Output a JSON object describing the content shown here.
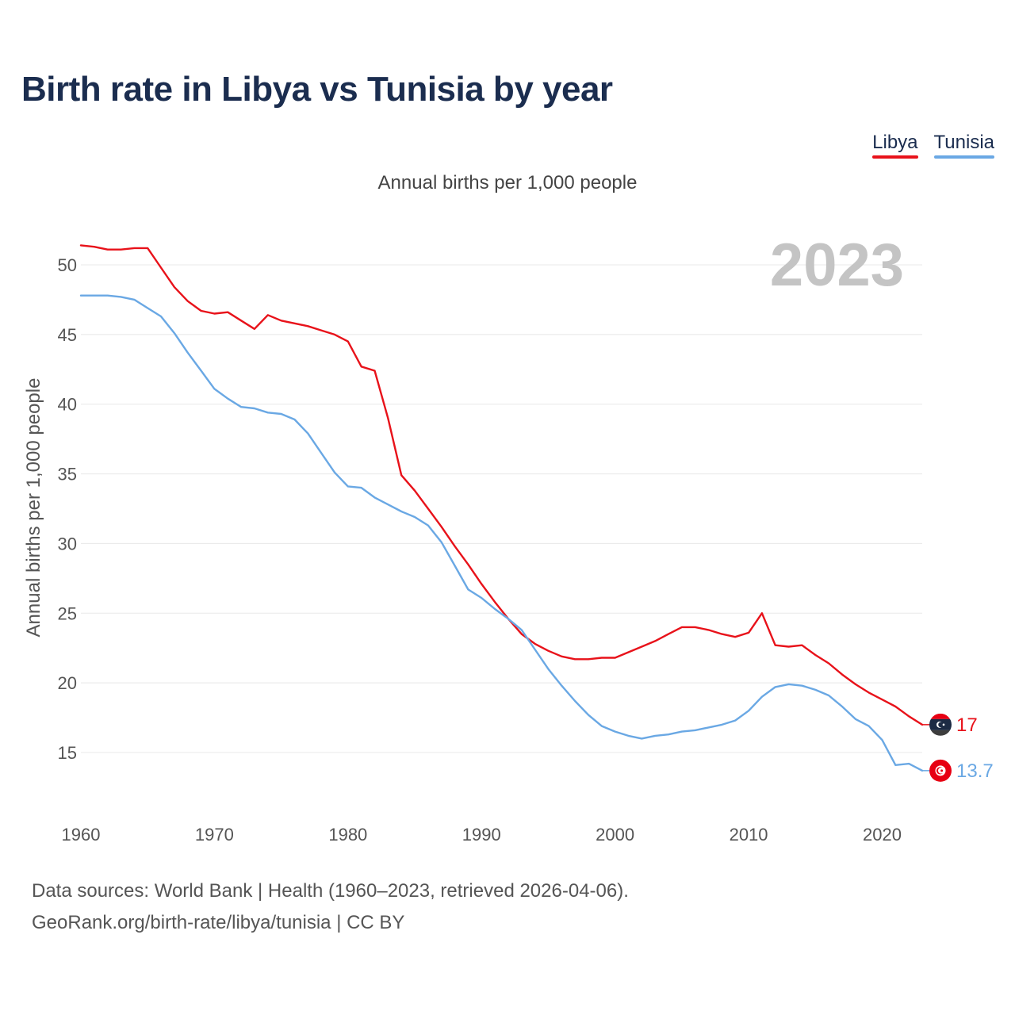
{
  "title": "Birth rate in Libya vs Tunisia by year",
  "subtitle": "Annual births per 1,000 people",
  "year_label": "2023",
  "footer": {
    "line1": "Data sources: World Bank | Health (1960–2023, retrieved 2026-04-06).",
    "line2": "GeoRank.org/birth-rate/libya/tunisia | CC BY"
  },
  "chart_data": {
    "type": "line",
    "title": "Birth rate in Libya vs Tunisia by year",
    "ylabel": "Annual births per 1,000 people",
    "xlabel": "",
    "xlim": [
      1960,
      2023
    ],
    "ylim": [
      15,
      50
    ],
    "y_ticks": [
      15,
      20,
      25,
      30,
      35,
      40,
      45,
      50
    ],
    "x_ticks": [
      1960,
      1970,
      1980,
      1990,
      2000,
      2010,
      2020
    ],
    "legend_position": "top-right",
    "x": [
      1960,
      1961,
      1962,
      1963,
      1964,
      1965,
      1966,
      1967,
      1968,
      1969,
      1970,
      1971,
      1972,
      1973,
      1974,
      1975,
      1976,
      1977,
      1978,
      1979,
      1980,
      1981,
      1982,
      1983,
      1984,
      1985,
      1986,
      1987,
      1988,
      1989,
      1990,
      1991,
      1992,
      1993,
      1994,
      1995,
      1996,
      1997,
      1998,
      1999,
      2000,
      2001,
      2002,
      2003,
      2004,
      2005,
      2006,
      2007,
      2008,
      2009,
      2010,
      2011,
      2012,
      2013,
      2014,
      2015,
      2016,
      2017,
      2018,
      2019,
      2020,
      2021,
      2022,
      2023
    ],
    "series": [
      {
        "name": "Libya",
        "color": "#e8121a",
        "end_label": "17",
        "values": [
          51.4,
          51.3,
          51.1,
          51.1,
          51.2,
          51.2,
          49.8,
          48.4,
          47.4,
          46.7,
          46.5,
          46.6,
          46.0,
          45.4,
          46.4,
          46.0,
          45.8,
          45.6,
          45.3,
          45.0,
          44.5,
          42.7,
          42.4,
          39.0,
          34.9,
          33.8,
          32.5,
          31.2,
          29.8,
          28.5,
          27.1,
          25.8,
          24.6,
          23.5,
          22.8,
          22.3,
          21.9,
          21.7,
          21.7,
          21.8,
          21.8,
          22.2,
          22.6,
          23.0,
          23.5,
          24.0,
          24.0,
          23.8,
          23.5,
          23.3,
          23.6,
          25.0,
          22.7,
          22.6,
          22.7,
          22.0,
          21.4,
          20.6,
          19.9,
          19.3,
          18.8,
          18.3,
          17.6,
          17.0
        ]
      },
      {
        "name": "Tunisia",
        "color": "#6aa8e4",
        "end_label": "13.7",
        "values": [
          47.8,
          47.8,
          47.8,
          47.7,
          47.5,
          46.9,
          46.3,
          45.1,
          43.7,
          42.4,
          41.1,
          40.4,
          39.8,
          39.7,
          39.4,
          39.3,
          38.9,
          37.9,
          36.5,
          35.1,
          34.1,
          34.0,
          33.3,
          32.8,
          32.3,
          31.9,
          31.3,
          30.1,
          28.4,
          26.7,
          26.1,
          25.3,
          24.6,
          23.8,
          22.4,
          21.0,
          19.8,
          18.7,
          17.7,
          16.9,
          16.5,
          16.2,
          16.0,
          16.2,
          16.3,
          16.5,
          16.6,
          16.8,
          17.0,
          17.3,
          18.0,
          19.0,
          19.7,
          19.9,
          19.8,
          19.5,
          19.1,
          18.3,
          17.4,
          16.9,
          15.9,
          14.1,
          14.2,
          13.7
        ]
      }
    ]
  }
}
